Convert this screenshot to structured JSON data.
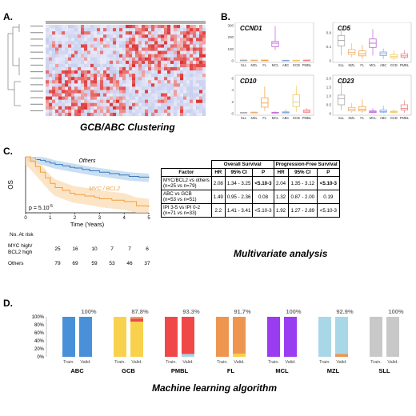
{
  "panel_a": {
    "label": "A.",
    "caption": "GCB/ABC Clustering"
  },
  "panel_b": {
    "label": "B.",
    "categories": [
      "SLL",
      "MZL",
      "FL",
      "MCL",
      "ABC",
      "GCB",
      "PMBL"
    ],
    "colors": [
      "#a8a8a8",
      "#f0b070",
      "#f4a040",
      "#c060d8",
      "#80a8e0",
      "#f0c860",
      "#f08080"
    ],
    "plots": [
      {
        "gene": "CCND1",
        "ylim": [
          0,
          300
        ],
        "yticks": [
          "0",
          "100",
          "200",
          "300"
        ],
        "boxes": [
          [
            2,
            4,
            5,
            6,
            8
          ],
          [
            2,
            4,
            5,
            6,
            9
          ],
          [
            2,
            3,
            5,
            6,
            9
          ],
          [
            90,
            120,
            150,
            165,
            295
          ],
          [
            2,
            3,
            4,
            5,
            7
          ],
          [
            2,
            3,
            4,
            5,
            8
          ],
          [
            2,
            3,
            5,
            6,
            8
          ]
        ]
      },
      {
        "gene": "CD5",
        "ylim": [
          0,
          1
        ],
        "yticks": [
          "0",
          "0.4",
          "0.8"
        ],
        "boxes": [
          [
            0.15,
            0.42,
            0.58,
            0.72,
            1.0
          ],
          [
            0.1,
            0.18,
            0.24,
            0.32,
            0.5
          ],
          [
            0.05,
            0.14,
            0.2,
            0.28,
            0.45
          ],
          [
            0.15,
            0.38,
            0.5,
            0.62,
            0.9
          ],
          [
            0.05,
            0.15,
            0.2,
            0.25,
            0.35
          ],
          [
            0.02,
            0.08,
            0.12,
            0.18,
            0.3
          ],
          [
            0.05,
            0.1,
            0.14,
            0.2,
            0.3
          ]
        ]
      },
      {
        "gene": "CD10",
        "ylim": [
          0,
          6
        ],
        "yticks": [
          "0",
          "2",
          "4",
          "6"
        ],
        "boxes": [
          [
            0.05,
            0.1,
            0.15,
            0.2,
            0.3
          ],
          [
            0.05,
            0.1,
            0.15,
            0.25,
            0.4
          ],
          [
            0.5,
            1.1,
            1.8,
            2.7,
            4.6
          ],
          [
            0.05,
            0.1,
            0.15,
            0.2,
            0.4
          ],
          [
            0.05,
            0.1,
            0.2,
            0.3,
            0.7
          ],
          [
            0.3,
            1.2,
            2.0,
            3.2,
            4.8
          ],
          [
            0.05,
            0.2,
            0.4,
            0.6,
            0.9
          ]
        ]
      },
      {
        "gene": "CD23",
        "ylim": [
          0,
          2
        ],
        "yticks": [
          "0",
          "0.5",
          "1.0",
          "1.5",
          "2.0"
        ],
        "boxes": [
          [
            0.2,
            0.5,
            0.85,
            1.05,
            1.9
          ],
          [
            0.05,
            0.15,
            0.25,
            0.35,
            0.6
          ],
          [
            0.05,
            0.15,
            0.25,
            0.4,
            0.8
          ],
          [
            0.02,
            0.06,
            0.1,
            0.15,
            0.3
          ],
          [
            0.02,
            0.08,
            0.12,
            0.2,
            0.45
          ],
          [
            0.02,
            0.06,
            0.1,
            0.14,
            0.25
          ],
          [
            0.05,
            0.2,
            0.3,
            0.5,
            0.75
          ]
        ]
      }
    ]
  },
  "panel_c": {
    "label": "C.",
    "km": {
      "ylabel": "OS",
      "xlabel": "Time (Years)",
      "xticks": [
        "0",
        "1",
        "2",
        "3",
        "4",
        "5"
      ],
      "pvalue": "p = 5.10",
      "pvalue_exp": "-5",
      "curves": [
        {
          "name": "Others",
          "color": "#3a78c0",
          "band": "#b8d4ee",
          "x": [
            0,
            0.2,
            0.4,
            0.6,
            0.8,
            1,
            1.2,
            1.5,
            1.8,
            2,
            2.3,
            2.6,
            3,
            3.4,
            3.8,
            4.2,
            4.6,
            5
          ],
          "y": [
            1,
            0.98,
            0.96,
            0.95,
            0.93,
            0.91,
            0.89,
            0.87,
            0.85,
            0.84,
            0.82,
            0.8,
            0.78,
            0.76,
            0.74,
            0.72,
            0.71,
            0.7
          ]
        },
        {
          "name": "MYC / BCL2",
          "color": "#f0a040",
          "band": "#fbdcb4",
          "x": [
            0,
            0.2,
            0.4,
            0.6,
            0.8,
            1,
            1.2,
            1.5,
            1.8,
            2,
            2.4,
            2.8,
            3,
            3.5,
            4,
            4.5,
            5
          ],
          "y": [
            1,
            0.94,
            0.86,
            0.78,
            0.7,
            0.62,
            0.56,
            0.52,
            0.48,
            0.46,
            0.44,
            0.42,
            0.4,
            0.38,
            0.36,
            0.3,
            0.28
          ]
        }
      ]
    },
    "risk": {
      "title": "No. At risk",
      "rows": [
        {
          "label1": "MYC high/",
          "label2": "BCL2 high",
          "values": [
            "25",
            "16",
            "10",
            "7",
            "7",
            "6"
          ]
        },
        {
          "label1": "Others",
          "label2": "",
          "values": [
            "79",
            "69",
            "59",
            "53",
            "46",
            "37"
          ]
        }
      ]
    },
    "table": {
      "group1": "Overall Survival",
      "group2": "Progression-Free Survival",
      "headers": [
        "Factor",
        "HR",
        "95% CI",
        "P",
        "HR",
        "95% CI",
        "P"
      ],
      "rows": [
        {
          "f1": "MYC/BCL2 vs others",
          "f2": "(n=25 vs n=79)",
          "cells": [
            "2.08",
            "1.34 - 3.25",
            "<5.10-3",
            "2.04",
            "1.35 - 3.12",
            "<5.10-3"
          ]
        },
        {
          "f1": "ABC vs GCB",
          "f2": "(n=53 vs n=51)",
          "cells": [
            "1.49",
            "0.95 - 2.36",
            "0.08",
            "1.32",
            "0.87 - 2.00",
            "0.19"
          ]
        },
        {
          "f1": "IPI 3-5 vs IPI 0-2",
          "f2": "(n=71 vs n=33)",
          "cells": [
            "2.2",
            "1.41 - 3.41",
            "<5.10-3",
            "1.92",
            "1.27 - 2.89",
            "<5.10-3"
          ]
        }
      ],
      "caption": "Multivariate analysis"
    }
  },
  "panel_d": {
    "label": "D.",
    "chart_data": {
      "type": "bar",
      "yticks": [
        "0%",
        "20%",
        "40%",
        "60%",
        "80%",
        "100%"
      ],
      "bar_labels": [
        "Train.",
        "Valid."
      ],
      "groups": [
        {
          "name": "ABC",
          "accuracy": "100%",
          "color": "#4a90d9",
          "train": [
            {
              "c": "#4a90d9",
              "v": 100
            }
          ],
          "valid": [
            {
              "c": "#4a90d9",
              "v": 100
            }
          ]
        },
        {
          "name": "GCB",
          "accuracy": "87.8%",
          "color": "#f8d24c",
          "train": [
            {
              "c": "#f8d24c",
              "v": 100
            }
          ],
          "valid": [
            {
              "c": "#f8d24c",
              "v": 88
            },
            {
              "c": "#e84a4a",
              "v": 7
            },
            {
              "c": "#f09a5c",
              "v": 5
            }
          ]
        },
        {
          "name": "PMBL",
          "accuracy": "93.3%",
          "color": "#f04848",
          "train": [
            {
              "c": "#f04848",
              "v": 100
            }
          ],
          "valid": [
            {
              "c": "#a8d8e8",
              "v": 7
            },
            {
              "c": "#f04848",
              "v": 93
            }
          ]
        },
        {
          "name": "FL",
          "accuracy": "91.7%",
          "color": "#ee9650",
          "train": [
            {
              "c": "#ee9650",
              "v": 100
            }
          ],
          "valid": [
            {
              "c": "#f8d24c",
              "v": 8
            },
            {
              "c": "#ee9650",
              "v": 92
            }
          ]
        },
        {
          "name": "MCL",
          "accuracy": "100%",
          "color": "#9a3cf0",
          "train": [
            {
              "c": "#9a3cf0",
              "v": 100
            }
          ],
          "valid": [
            {
              "c": "#9a3cf0",
              "v": 100
            }
          ]
        },
        {
          "name": "MZL",
          "accuracy": "92.9%",
          "color": "#a8d8e8",
          "train": [
            {
              "c": "#a8d8e8",
              "v": 100
            }
          ],
          "valid": [
            {
              "c": "#ee9650",
              "v": 7
            },
            {
              "c": "#a8d8e8",
              "v": 93
            }
          ]
        },
        {
          "name": "SLL",
          "accuracy": "100%",
          "color": "#c8c8c8",
          "train": [
            {
              "c": "#c8c8c8",
              "v": 100
            }
          ],
          "valid": [
            {
              "c": "#c8c8c8",
              "v": 100
            }
          ]
        }
      ]
    },
    "caption": "Machine learning algorithm"
  }
}
